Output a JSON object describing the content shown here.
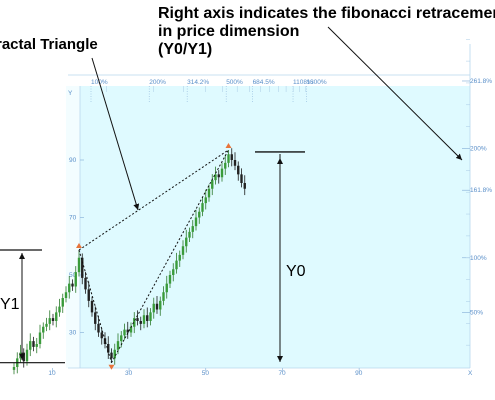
{
  "annotations": {
    "right_axis_note_1": "Right axis indicates the fibonacci retracement",
    "right_axis_note_2": "in price dimension",
    "right_axis_note_3": "(Y0/Y1)",
    "fractal_triangle": "ractal Triangle",
    "y0": "Y0",
    "y1": "Y1"
  },
  "chart_data": {
    "type": "candlestick",
    "title": "",
    "left_axis": {
      "label": "Y",
      "ticks": [
        "90",
        "70",
        "50",
        "30"
      ]
    },
    "right_axis": {
      "label": "",
      "ticks": [
        "261.8%",
        "200%",
        "161.8%",
        "100%",
        "50%"
      ]
    },
    "top_axis": {
      "ticks": [
        "100%",
        "200%",
        "314.2%",
        "500%",
        "684.5%",
        "1108%",
        "1300%"
      ]
    },
    "bottom_axis": {
      "label": "X",
      "ticks": [
        "10",
        "30",
        "50",
        "70",
        "90"
      ]
    },
    "ratio_ticks_percent": [
      100,
      200,
      314.2,
      500,
      684.5,
      1108,
      1300
    ],
    "fib_levels_percent": [
      261.8,
      200,
      161.8,
      100,
      50
    ],
    "series": [
      {
        "values": [
          18,
          21,
          23,
          20,
          24,
          27,
          25,
          26,
          30,
          32,
          33,
          35,
          34,
          37,
          39,
          42,
          44,
          47,
          46,
          51,
          56,
          49,
          45,
          41,
          37,
          33,
          30,
          28,
          26,
          23,
          21,
          24,
          27,
          29,
          31,
          30,
          32,
          35,
          34,
          33,
          36,
          34,
          37,
          40,
          38,
          41,
          44,
          47,
          50,
          52,
          55,
          57,
          60,
          63,
          65,
          67,
          70,
          72,
          75,
          77,
          80,
          83,
          85,
          84,
          87,
          89,
          92,
          90,
          88,
          85,
          82,
          80
        ]
      }
    ],
    "marked_points": [
      "high",
      "first_swing_high",
      "low"
    ]
  }
}
